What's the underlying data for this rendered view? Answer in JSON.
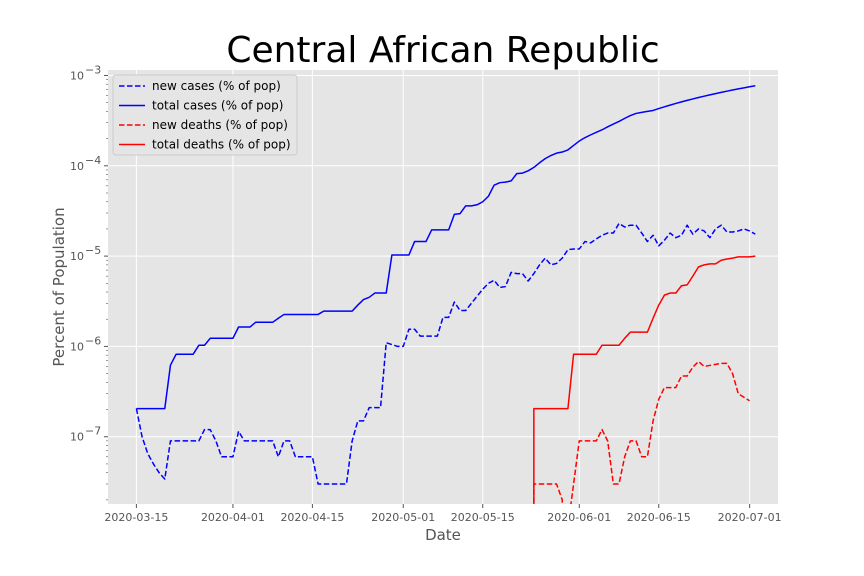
{
  "chart_data": {
    "type": "line",
    "title": "Central African Republic",
    "xlabel": "Date",
    "ylabel": "Percent of Population",
    "y_scale": "log",
    "xlim": [
      "2020-03-10",
      "2020-07-06"
    ],
    "ylim": [
      1.8e-08,
      0.00115
    ],
    "grid": true,
    "legend_position": "top-left",
    "x_ticks": [
      "2020-03-15",
      "2020-04-01",
      "2020-04-15",
      "2020-05-01",
      "2020-05-15",
      "2020-06-01",
      "2020-06-15",
      "2020-07-01"
    ],
    "y_ticks": [
      {
        "value": 1e-07,
        "base": "10",
        "exp": "−7"
      },
      {
        "value": 1e-06,
        "base": "10",
        "exp": "−6"
      },
      {
        "value": 1e-05,
        "base": "10",
        "exp": "−5"
      },
      {
        "value": 0.0001,
        "base": "10",
        "exp": "−4"
      },
      {
        "value": 0.001,
        "base": "10",
        "exp": "−3"
      }
    ],
    "series": [
      {
        "name": "new cases (% of pop)",
        "color": "#0000ff",
        "dash": "dashed",
        "points": [
          [
            "2020-03-15",
            2.05e-07
          ],
          [
            "2020-03-16",
            1e-07
          ],
          [
            "2020-03-17",
            6.5e-08
          ],
          [
            "2020-03-18",
            5e-08
          ],
          [
            "2020-03-19",
            4e-08
          ],
          [
            "2020-03-20",
            3.4e-08
          ],
          [
            "2020-03-21",
            9e-08
          ],
          [
            "2020-03-24",
            9e-08
          ],
          [
            "2020-03-26",
            9e-08
          ],
          [
            "2020-03-27",
            1.2e-07
          ],
          [
            "2020-03-28",
            1.2e-07
          ],
          [
            "2020-03-29",
            9e-08
          ],
          [
            "2020-03-30",
            6e-08
          ],
          [
            "2020-04-01",
            6e-08
          ],
          [
            "2020-04-02",
            1.15e-07
          ],
          [
            "2020-04-03",
            9e-08
          ],
          [
            "2020-04-08",
            9e-08
          ],
          [
            "2020-04-09",
            6e-08
          ],
          [
            "2020-04-10",
            9e-08
          ],
          [
            "2020-04-11",
            9e-08
          ],
          [
            "2020-04-12",
            6e-08
          ],
          [
            "2020-04-15",
            6e-08
          ],
          [
            "2020-04-16",
            3e-08
          ],
          [
            "2020-04-21",
            3e-08
          ],
          [
            "2020-04-22",
            9e-08
          ],
          [
            "2020-04-23",
            1.5e-07
          ],
          [
            "2020-04-24",
            1.5e-07
          ],
          [
            "2020-04-25",
            2.1e-07
          ],
          [
            "2020-04-27",
            2.1e-07
          ],
          [
            "2020-04-28",
            1.1e-06
          ],
          [
            "2020-04-30",
            1e-06
          ],
          [
            "2020-05-01",
            1e-06
          ],
          [
            "2020-05-02",
            1.55e-06
          ],
          [
            "2020-05-03",
            1.55e-06
          ],
          [
            "2020-05-04",
            1.3e-06
          ],
          [
            "2020-05-07",
            1.3e-06
          ],
          [
            "2020-05-08",
            2.1e-06
          ],
          [
            "2020-05-09",
            2.1e-06
          ],
          [
            "2020-05-10",
            3.1e-06
          ],
          [
            "2020-05-11",
            2.5e-06
          ],
          [
            "2020-05-12",
            2.5e-06
          ],
          [
            "2020-05-13",
            3e-06
          ],
          [
            "2020-05-15",
            4.3e-06
          ],
          [
            "2020-05-16",
            5e-06
          ],
          [
            "2020-05-17",
            5.4e-06
          ],
          [
            "2020-05-18",
            4.5e-06
          ],
          [
            "2020-05-19",
            4.6e-06
          ],
          [
            "2020-05-20",
            6.6e-06
          ],
          [
            "2020-05-21",
            6.4e-06
          ],
          [
            "2020-05-22",
            6.4e-06
          ],
          [
            "2020-05-23",
            5.3e-06
          ],
          [
            "2020-05-24",
            6.4e-06
          ],
          [
            "2020-05-25",
            8e-06
          ],
          [
            "2020-05-26",
            9.5e-06
          ],
          [
            "2020-05-27",
            8e-06
          ],
          [
            "2020-05-28",
            8.3e-06
          ],
          [
            "2020-05-29",
            9.5e-06
          ],
          [
            "2020-05-30",
            1.18e-05
          ],
          [
            "2020-05-31",
            1.2e-05
          ],
          [
            "2020-06-01",
            1.2e-05
          ],
          [
            "2020-06-02",
            1.45e-05
          ],
          [
            "2020-06-03",
            1.4e-05
          ],
          [
            "2020-06-04",
            1.55e-05
          ],
          [
            "2020-06-05",
            1.7e-05
          ],
          [
            "2020-06-06",
            1.8e-05
          ],
          [
            "2020-06-07",
            1.8e-05
          ],
          [
            "2020-06-08",
            2.3e-05
          ],
          [
            "2020-06-09",
            2.1e-05
          ],
          [
            "2020-06-10",
            2.2e-05
          ],
          [
            "2020-06-11",
            2.2e-05
          ],
          [
            "2020-06-12",
            1.8e-05
          ],
          [
            "2020-06-13",
            1.45e-05
          ],
          [
            "2020-06-14",
            1.7e-05
          ],
          [
            "2020-06-15",
            1.3e-05
          ],
          [
            "2020-06-16",
            1.5e-05
          ],
          [
            "2020-06-17",
            1.8e-05
          ],
          [
            "2020-06-18",
            1.6e-05
          ],
          [
            "2020-06-19",
            1.7e-05
          ],
          [
            "2020-06-20",
            2.2e-05
          ],
          [
            "2020-06-21",
            1.75e-05
          ],
          [
            "2020-06-22",
            2e-05
          ],
          [
            "2020-06-23",
            1.9e-05
          ],
          [
            "2020-06-24",
            1.6e-05
          ],
          [
            "2020-06-25",
            2e-05
          ],
          [
            "2020-06-26",
            2.2e-05
          ],
          [
            "2020-06-27",
            1.85e-05
          ],
          [
            "2020-06-28",
            1.85e-05
          ],
          [
            "2020-06-29",
            1.9e-05
          ],
          [
            "2020-06-30",
            2e-05
          ],
          [
            "2020-07-01",
            1.9e-05
          ],
          [
            "2020-07-02",
            1.75e-05
          ]
        ]
      },
      {
        "name": "total cases (% of pop)",
        "color": "#0000ff",
        "dash": "solid",
        "points": [
          [
            "2020-03-15",
            2.05e-07
          ],
          [
            "2020-03-18",
            2.05e-07
          ],
          [
            "2020-03-20",
            2.05e-07
          ],
          [
            "2020-03-21",
            6.2e-07
          ],
          [
            "2020-03-22",
            8.2e-07
          ],
          [
            "2020-03-24",
            8.2e-07
          ],
          [
            "2020-03-25",
            8.2e-07
          ],
          [
            "2020-03-26",
            1.03e-06
          ],
          [
            "2020-03-27",
            1.03e-06
          ],
          [
            "2020-03-28",
            1.23e-06
          ],
          [
            "2020-03-31",
            1.23e-06
          ],
          [
            "2020-04-01",
            1.23e-06
          ],
          [
            "2020-04-02",
            1.64e-06
          ],
          [
            "2020-04-03",
            1.64e-06
          ],
          [
            "2020-04-04",
            1.64e-06
          ],
          [
            "2020-04-05",
            1.85e-06
          ],
          [
            "2020-04-07",
            1.85e-06
          ],
          [
            "2020-04-08",
            1.85e-06
          ],
          [
            "2020-04-09",
            2.05e-06
          ],
          [
            "2020-04-10",
            2.26e-06
          ],
          [
            "2020-04-15",
            2.26e-06
          ],
          [
            "2020-04-16",
            2.26e-06
          ],
          [
            "2020-04-17",
            2.46e-06
          ],
          [
            "2020-04-21",
            2.46e-06
          ],
          [
            "2020-04-22",
            2.46e-06
          ],
          [
            "2020-04-23",
            2.87e-06
          ],
          [
            "2020-04-24",
            3.3e-06
          ],
          [
            "2020-04-25",
            3.5e-06
          ],
          [
            "2020-04-26",
            3.9e-06
          ],
          [
            "2020-04-27",
            3.9e-06
          ],
          [
            "2020-04-28",
            3.9e-06
          ],
          [
            "2020-04-29",
            1.03e-05
          ],
          [
            "2020-05-01",
            1.03e-05
          ],
          [
            "2020-05-02",
            1.03e-05
          ],
          [
            "2020-05-03",
            1.45e-05
          ],
          [
            "2020-05-04",
            1.45e-05
          ],
          [
            "2020-05-05",
            1.45e-05
          ],
          [
            "2020-05-06",
            1.95e-05
          ],
          [
            "2020-05-07",
            1.95e-05
          ],
          [
            "2020-05-08",
            1.95e-05
          ],
          [
            "2020-05-09",
            1.95e-05
          ],
          [
            "2020-05-10",
            2.9e-05
          ],
          [
            "2020-05-11",
            2.95e-05
          ],
          [
            "2020-05-12",
            3.6e-05
          ],
          [
            "2020-05-13",
            3.6e-05
          ],
          [
            "2020-05-14",
            3.7e-05
          ],
          [
            "2020-05-15",
            4e-05
          ],
          [
            "2020-05-16",
            4.6e-05
          ],
          [
            "2020-05-17",
            6.1e-05
          ],
          [
            "2020-05-18",
            6.5e-05
          ],
          [
            "2020-05-19",
            6.6e-05
          ],
          [
            "2020-05-20",
            6.8e-05
          ],
          [
            "2020-05-21",
            8.2e-05
          ],
          [
            "2020-05-22",
            8.3e-05
          ],
          [
            "2020-05-23",
            8.8e-05
          ],
          [
            "2020-05-24",
            9.6e-05
          ],
          [
            "2020-05-25",
            0.000108
          ],
          [
            "2020-05-26",
            0.00012
          ],
          [
            "2020-05-27",
            0.00013
          ],
          [
            "2020-05-28",
            0.000138
          ],
          [
            "2020-05-29",
            0.000142
          ],
          [
            "2020-05-30",
            0.00015
          ],
          [
            "2020-05-31",
            0.000168
          ],
          [
            "2020-06-01",
            0.000188
          ],
          [
            "2020-06-02",
            0.000205
          ],
          [
            "2020-06-03",
            0.00022
          ],
          [
            "2020-06-04",
            0.000235
          ],
          [
            "2020-06-05",
            0.00025
          ],
          [
            "2020-06-06",
            0.00027
          ],
          [
            "2020-06-07",
            0.00029
          ],
          [
            "2020-06-08",
            0.00031
          ],
          [
            "2020-06-09",
            0.000335
          ],
          [
            "2020-06-10",
            0.00036
          ],
          [
            "2020-06-11",
            0.00038
          ],
          [
            "2020-06-12",
            0.00039
          ],
          [
            "2020-06-13",
            0.0004
          ],
          [
            "2020-06-14",
            0.00041
          ],
          [
            "2020-06-15",
            0.00043
          ],
          [
            "2020-06-16",
            0.00045
          ],
          [
            "2020-06-17",
            0.00047
          ],
          [
            "2020-06-18",
            0.00049
          ],
          [
            "2020-06-19",
            0.00051
          ],
          [
            "2020-06-20",
            0.00053
          ],
          [
            "2020-06-21",
            0.00055
          ],
          [
            "2020-06-22",
            0.00057
          ],
          [
            "2020-06-23",
            0.00059
          ],
          [
            "2020-06-24",
            0.00061
          ],
          [
            "2020-06-25",
            0.00063
          ],
          [
            "2020-06-26",
            0.00065
          ],
          [
            "2020-06-27",
            0.00067
          ],
          [
            "2020-06-28",
            0.00069
          ],
          [
            "2020-06-29",
            0.00071
          ],
          [
            "2020-06-30",
            0.00073
          ],
          [
            "2020-07-01",
            0.00075
          ],
          [
            "2020-07-02",
            0.00077
          ]
        ]
      },
      {
        "name": "new deaths (% of pop)",
        "color": "#ff0000",
        "dash": "dashed",
        "points": [
          [
            "2020-05-24",
            1e-08
          ],
          [
            "2020-05-24",
            3e-08
          ],
          [
            "2020-05-28",
            3e-08
          ],
          [
            "2020-05-29",
            2e-08
          ],
          [
            "2020-05-29",
            1e-08
          ],
          [
            "2020-05-30",
            1e-08
          ],
          [
            "2020-05-31",
            3e-08
          ],
          [
            "2020-06-01",
            9e-08
          ],
          [
            "2020-06-04",
            9e-08
          ],
          [
            "2020-06-05",
            1.2e-07
          ],
          [
            "2020-06-06",
            9e-08
          ],
          [
            "2020-06-07",
            3e-08
          ],
          [
            "2020-06-08",
            3e-08
          ],
          [
            "2020-06-09",
            6e-08
          ],
          [
            "2020-06-10",
            9e-08
          ],
          [
            "2020-06-11",
            9e-08
          ],
          [
            "2020-06-12",
            6e-08
          ],
          [
            "2020-06-13",
            6e-08
          ],
          [
            "2020-06-14",
            1.5e-07
          ],
          [
            "2020-06-15",
            2.6e-07
          ],
          [
            "2020-06-16",
            3.5e-07
          ],
          [
            "2020-06-18",
            3.5e-07
          ],
          [
            "2020-06-19",
            4.7e-07
          ],
          [
            "2020-06-20",
            4.7e-07
          ],
          [
            "2020-06-21",
            5.9e-07
          ],
          [
            "2020-06-22",
            6.8e-07
          ],
          [
            "2020-06-23",
            6e-07
          ],
          [
            "2020-06-26",
            6.5e-07
          ],
          [
            "2020-06-27",
            6.5e-07
          ],
          [
            "2020-06-28",
            5e-07
          ],
          [
            "2020-06-29",
            3e-07
          ],
          [
            "2020-07-01",
            2.5e-07
          ]
        ]
      },
      {
        "name": "total deaths (% of pop)",
        "color": "#ff0000",
        "dash": "solid",
        "points": [
          [
            "2020-05-24",
            1e-08
          ],
          [
            "2020-05-24",
            2.05e-07
          ],
          [
            "2020-05-29",
            2.05e-07
          ],
          [
            "2020-05-30",
            2.05e-07
          ],
          [
            "2020-05-31",
            8.2e-07
          ],
          [
            "2020-06-03",
            8.2e-07
          ],
          [
            "2020-06-04",
            8.2e-07
          ],
          [
            "2020-06-05",
            1.03e-06
          ],
          [
            "2020-06-07",
            1.03e-06
          ],
          [
            "2020-06-08",
            1.03e-06
          ],
          [
            "2020-06-09",
            1.23e-06
          ],
          [
            "2020-06-10",
            1.44e-06
          ],
          [
            "2020-06-12",
            1.44e-06
          ],
          [
            "2020-06-13",
            1.44e-06
          ],
          [
            "2020-06-14",
            2.05e-06
          ],
          [
            "2020-06-15",
            2.87e-06
          ],
          [
            "2020-06-16",
            3.7e-06
          ],
          [
            "2020-06-17",
            3.9e-06
          ],
          [
            "2020-06-18",
            3.9e-06
          ],
          [
            "2020-06-19",
            4.7e-06
          ],
          [
            "2020-06-20",
            4.8e-06
          ],
          [
            "2020-06-21",
            6e-06
          ],
          [
            "2020-06-22",
            7.6e-06
          ],
          [
            "2020-06-23",
            8e-06
          ],
          [
            "2020-06-24",
            8.2e-06
          ],
          [
            "2020-06-25",
            8.2e-06
          ],
          [
            "2020-06-26",
            9e-06
          ],
          [
            "2020-06-27",
            9.3e-06
          ],
          [
            "2020-06-28",
            9.5e-06
          ],
          [
            "2020-06-29",
            9.8e-06
          ],
          [
            "2020-07-01",
            9.8e-06
          ],
          [
            "2020-07-02",
            1e-05
          ]
        ]
      }
    ]
  }
}
